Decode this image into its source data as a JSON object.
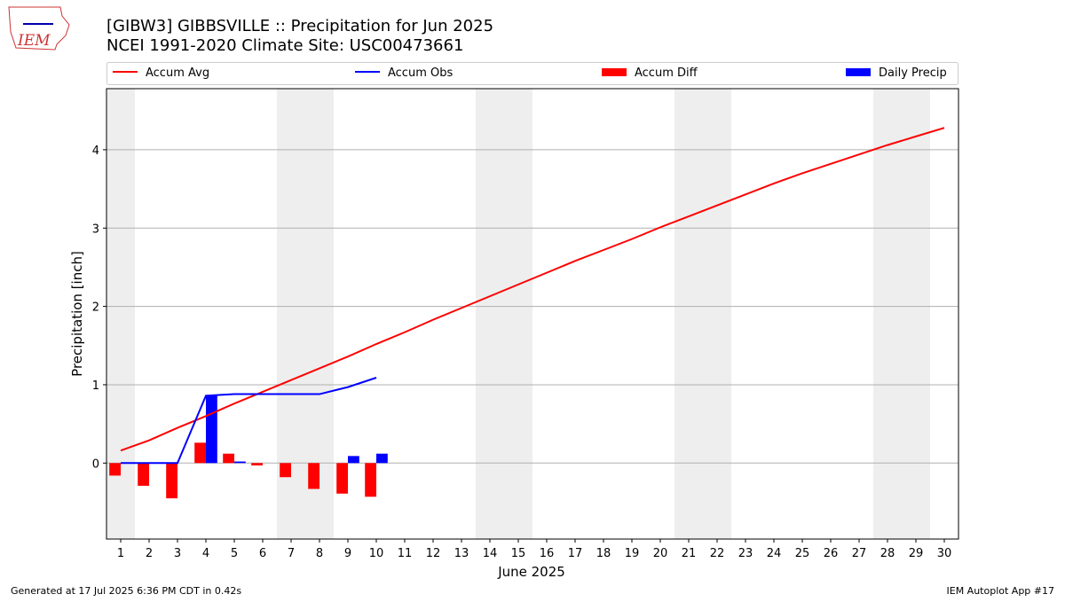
{
  "logo_text": "IEM",
  "footer": {
    "left": "Generated at 17 Jul 2025 6:36 PM CDT in 0.42s",
    "right": "IEM Autoplot App #17"
  },
  "chart_data": {
    "type": "line",
    "title": "[GIBW3] GIBBSVILLE :: Precipitation for Jun 2025",
    "subtitle": "NCEI 1991-2020 Climate Site: USC00473661",
    "x_label": "June 2025",
    "y_label": "Precipitation [inch]",
    "x": [
      1,
      2,
      3,
      4,
      5,
      6,
      7,
      8,
      9,
      10,
      11,
      12,
      13,
      14,
      15,
      16,
      17,
      18,
      19,
      20,
      21,
      22,
      23,
      24,
      25,
      26,
      27,
      28,
      29,
      30
    ],
    "xlim": [
      0.5,
      30.5
    ],
    "xticks": [
      1,
      2,
      3,
      4,
      5,
      6,
      7,
      8,
      9,
      10,
      11,
      12,
      13,
      14,
      15,
      16,
      17,
      18,
      19,
      20,
      21,
      22,
      23,
      24,
      25,
      26,
      27,
      28,
      29,
      30
    ],
    "ylim": [
      -0.97,
      4.78
    ],
    "yticks": [
      0,
      1,
      2,
      3,
      4
    ],
    "grid": true,
    "shaded_ranges": [
      [
        0.5,
        1.5
      ],
      [
        6.5,
        8.5
      ],
      [
        13.5,
        15.5
      ],
      [
        20.5,
        22.5
      ],
      [
        27.5,
        29.5
      ]
    ],
    "series": [
      {
        "name": "Accum Avg",
        "type": "line",
        "color": "#ff0000",
        "values": [
          0.16,
          0.29,
          0.45,
          0.6,
          0.76,
          0.91,
          1.06,
          1.21,
          1.36,
          1.52,
          1.67,
          1.83,
          1.98,
          2.13,
          2.28,
          2.43,
          2.58,
          2.72,
          2.86,
          3.01,
          3.15,
          3.29,
          3.43,
          3.57,
          3.7,
          3.82,
          3.94,
          4.06,
          4.17,
          4.28
        ]
      },
      {
        "name": "Accum Obs",
        "type": "line",
        "color": "#0000ff",
        "values": [
          0,
          0,
          0,
          0.86,
          0.88,
          0.88,
          0.88,
          0.88,
          0.97,
          1.09,
          null,
          null,
          null,
          null,
          null,
          null,
          null,
          null,
          null,
          null,
          null,
          null,
          null,
          null,
          null,
          null,
          null,
          null,
          null,
          null
        ]
      },
      {
        "name": "Accum Diff",
        "type": "bar",
        "color": "#ff0000",
        "offset": -0.4,
        "values": [
          -0.16,
          -0.29,
          -0.45,
          0.26,
          0.12,
          -0.03,
          -0.18,
          -0.33,
          -0.39,
          -0.43,
          null,
          null,
          null,
          null,
          null,
          null,
          null,
          null,
          null,
          null,
          null,
          null,
          null,
          null,
          null,
          null,
          null,
          null,
          null,
          null
        ]
      },
      {
        "name": "Daily Precip",
        "type": "bar",
        "color": "#0000ff",
        "offset": 0,
        "values": [
          0,
          0,
          0,
          0.86,
          0.02,
          0,
          0,
          0,
          0.09,
          0.12,
          null,
          null,
          null,
          null,
          null,
          null,
          null,
          null,
          null,
          null,
          null,
          null,
          null,
          null,
          null,
          null,
          null,
          null,
          null,
          null
        ]
      }
    ]
  }
}
